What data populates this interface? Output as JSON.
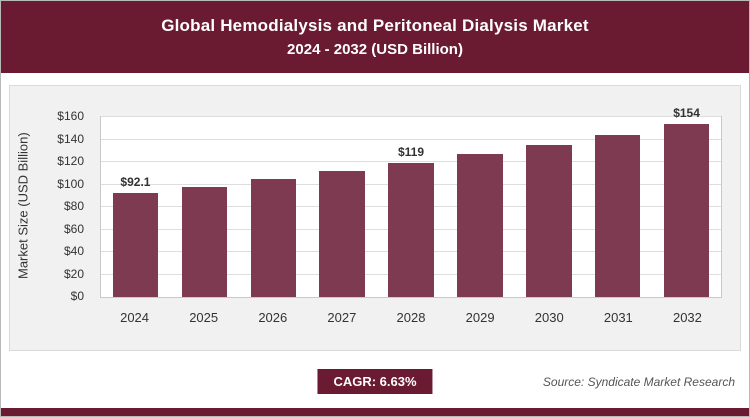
{
  "header": {
    "title_line1": "Global Hemodialysis and Peritoneal Dialysis Market",
    "title_line2": "2024 - 2032 (USD Billion)"
  },
  "chart_data": {
    "type": "bar",
    "title": "Global Hemodialysis and Peritoneal Dialysis Market 2024 - 2032 (USD Billion)",
    "categories": [
      "2024",
      "2025",
      "2026",
      "2027",
      "2028",
      "2029",
      "2030",
      "2031",
      "2032"
    ],
    "values": [
      92.1,
      98.2,
      104.7,
      111.6,
      119,
      126.9,
      135.3,
      144.3,
      154
    ],
    "data_labels": {
      "2024": "$92.1",
      "2028": "$119",
      "2032": "$154"
    },
    "xlabel": "",
    "ylabel": "Market Size (USD Billion)",
    "ylim": [
      0,
      160
    ],
    "ytick_step": 20,
    "ytick_prefix": "$",
    "grid": true,
    "legend": "none",
    "bar_color": "#7e3a50"
  },
  "footer": {
    "cagr_label": "CAGR: 6.63%",
    "source": "Source: Syndicate Market Research"
  },
  "colors": {
    "header_bg": "#6b1b31",
    "bar": "#7e3a50",
    "panel_bg": "#f1f1f1",
    "plot_bg": "#ffffff"
  }
}
